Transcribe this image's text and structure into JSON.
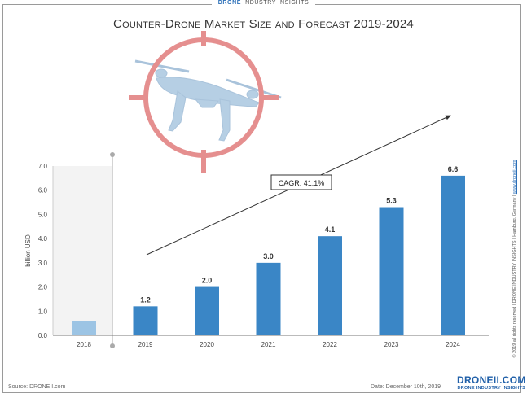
{
  "banner": {
    "brand": "DRONE",
    "rest": "INDUSTRY INSIGHTS"
  },
  "chart_data": {
    "type": "bar",
    "title": "Counter-Drone Market Size and Forecast 2019-2024",
    "ylabel": "billion USD",
    "xlabel": "",
    "ylim": [
      0,
      7
    ],
    "yticks": [
      "0.0",
      "1.0",
      "2.0",
      "3.0",
      "4.0",
      "5.0",
      "6.0",
      "7.0"
    ],
    "categories": [
      "2018",
      "2019",
      "2020",
      "2021",
      "2022",
      "2023",
      "2024"
    ],
    "values": [
      0.6,
      1.2,
      2.0,
      3.0,
      4.1,
      5.3,
      6.6
    ],
    "data_labels": [
      "",
      "1.2",
      "2.0",
      "3.0",
      "4.1",
      "5.3",
      "6.6"
    ],
    "highlight_category": "2018",
    "annotation": "CAGR: 41.1%",
    "colors": {
      "bar": "#3a86c6",
      "bar_2018": "#9cc4e4",
      "arrow": "#333333",
      "crosshair": "#e58f8f",
      "drone": "#b6cfe4"
    },
    "grid": false
  },
  "footer": {
    "source": "Source: DRONEII.com",
    "date": "Date: December 10th, 2019",
    "logo_main": "DRONEII.COM",
    "logo_sub": "DRONE INDUSTRY INSIGHTS"
  },
  "side_note": {
    "text": "© 2019 all rights reserved | DRONE INDUSTRY INSIGHTS | Hamburg, Germany | ",
    "url": "www.droneii.com"
  },
  "icons": {
    "graphic": "crosshair-drone-icon"
  }
}
